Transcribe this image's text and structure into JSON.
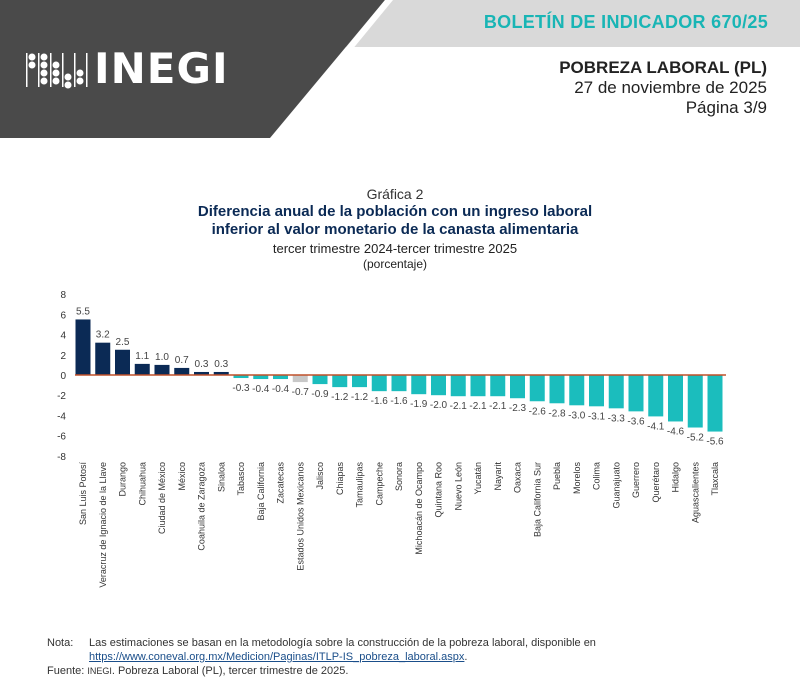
{
  "header": {
    "logo_text": "INEGI",
    "bulletin": "BOLETÍN DE INDICADOR 670/25",
    "title": "POBREZA LABORAL (PL)",
    "date": "27 de noviembre de 2025",
    "page": "Página 3/9"
  },
  "chart_data": {
    "type": "bar",
    "label": "Gráfica 2",
    "title": "Diferencia anual de la población con un ingreso laboral inferior al valor monetario de la canasta alimentaria",
    "subtitle": "tercer trimestre 2024-tercer trimestre 2025",
    "unit": "(porcentaje)",
    "xlabel": "",
    "ylabel": "",
    "ylim": [
      -8,
      8
    ],
    "yticks": [
      8,
      6,
      4,
      2,
      0,
      -2,
      -4,
      -6,
      -8
    ],
    "grid": false,
    "categories": [
      "San Luis Potosí",
      "Veracruz de Ignacio de la Llave",
      "Durango",
      "Chihuahua",
      "Ciudad de México",
      "México",
      "Coahuila de Zaragoza",
      "Sinaloa",
      "Tabasco",
      "Baja California",
      "Zacatecas",
      "Estados Unidos Mexicanos",
      "Jalisco",
      "Chiapas",
      "Tamaulipas",
      "Campeche",
      "Sonora",
      "Michoacán de Ocampo",
      "Quintana Roo",
      "Nuevo León",
      "Yucatán",
      "Nayarit",
      "Oaxaca",
      "Baja California Sur",
      "Puebla",
      "Morelos",
      "Colima",
      "Guanajuato",
      "Guerrero",
      "Querétaro",
      "Hidalgo",
      "Aguascalientes",
      "Tlaxcala"
    ],
    "values": [
      5.5,
      3.2,
      2.5,
      1.1,
      1.0,
      0.7,
      0.3,
      0.3,
      -0.3,
      -0.4,
      -0.4,
      -0.7,
      -0.9,
      -1.2,
      -1.2,
      -1.6,
      -1.6,
      -1.9,
      -2.0,
      -2.1,
      -2.1,
      -2.1,
      -2.3,
      -2.6,
      -2.8,
      -3.0,
      -3.1,
      -3.3,
      -3.6,
      -4.1,
      -4.6,
      -5.2,
      -5.6
    ],
    "highlight_category": "Estados Unidos Mexicanos",
    "colors": {
      "positive": "#0b2a55",
      "negative": "#1bbdbd",
      "national": "#c8c8c8",
      "zero_line": "#c0502a"
    }
  },
  "footer": {
    "note_label": "Nota:",
    "note_text": "Las estimaciones se basan en la metodología sobre la construcción de la pobreza laboral, disponible en",
    "note_link": "https://www.coneval.org.mx/Medicion/Paginas/ITLP-IS_pobreza_laboral.aspx",
    "note_end": ".",
    "source_label": "Fuente:",
    "source_org": "INEGI",
    "source_text": ". Pobreza Laboral (PL), tercer trimestre de 2025."
  }
}
